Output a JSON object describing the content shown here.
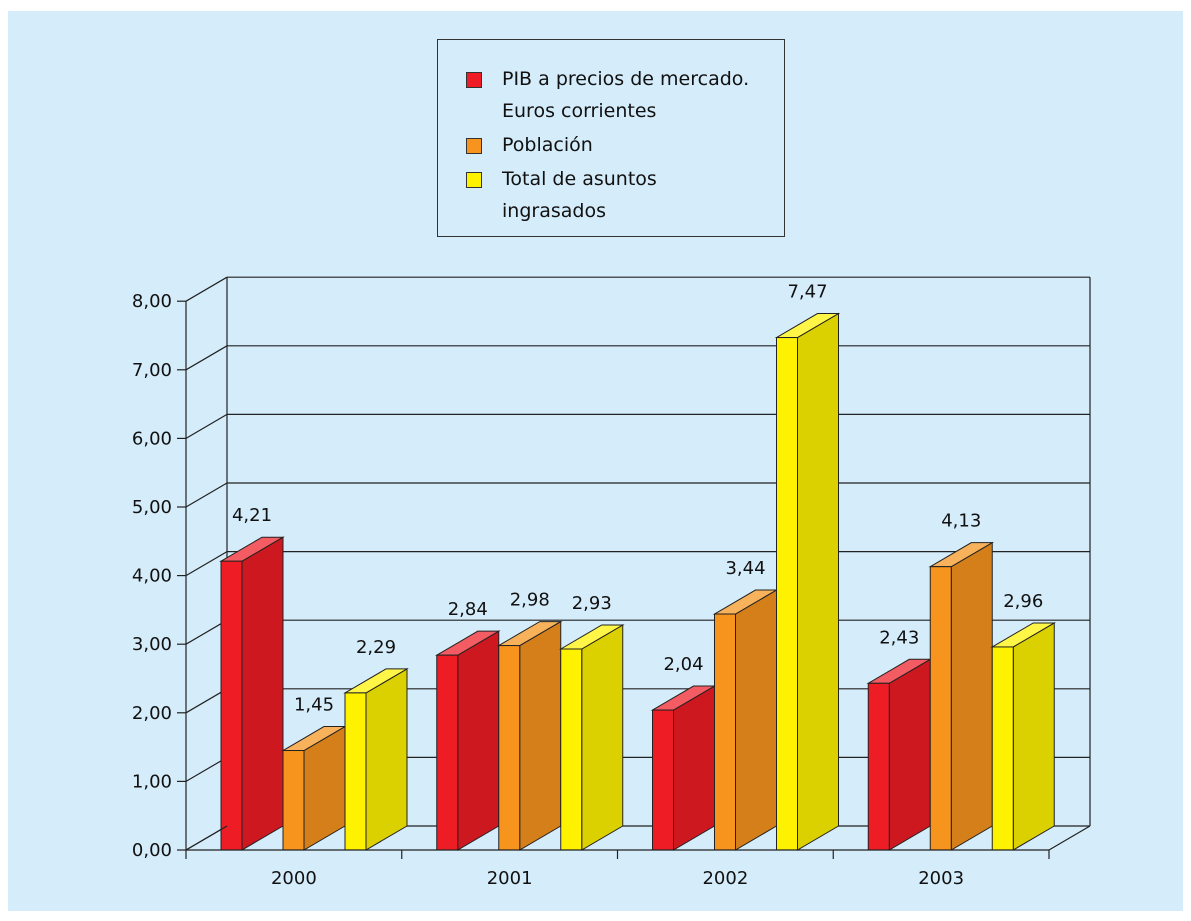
{
  "colors": {
    "background": "#d5ecfa",
    "pib": "#ee1c25",
    "poblacion": "#f7941d",
    "asuntos": "#fff200"
  },
  "legend": [
    {
      "label": "PIB a precios de mercado. Euros corrientes",
      "color": "#ee1c25"
    },
    {
      "label": "Población",
      "color": "#f7941d"
    },
    {
      "label": "Total de asuntos ingrasados",
      "color": "#fff200"
    }
  ],
  "chart_data": {
    "type": "bar",
    "categories": [
      "2000",
      "2001",
      "2002",
      "2003"
    ],
    "series": [
      {
        "name": "PIB a precios de mercado. Euros corrientes",
        "values": [
          4.21,
          2.84,
          2.04,
          2.43
        ],
        "labels": [
          "4,21",
          "2,84",
          "2,04",
          "2,43"
        ],
        "color": "#ee1c25"
      },
      {
        "name": "Población",
        "values": [
          1.45,
          2.98,
          3.44,
          4.13
        ],
        "labels": [
          "1,45",
          "2,98",
          "3,44",
          "4,13"
        ],
        "color": "#f7941d"
      },
      {
        "name": "Total de asuntos ingrasados",
        "values": [
          2.29,
          2.93,
          7.47,
          2.96
        ],
        "labels": [
          "2,29",
          "2,93",
          "7,47",
          "2,96"
        ],
        "color": "#fff200"
      }
    ],
    "yticks": [
      "0,00",
      "1,00",
      "2,00",
      "3,00",
      "4,00",
      "5,00",
      "6,00",
      "7,00",
      "8,00"
    ],
    "ylim": [
      0,
      8
    ],
    "grid": true,
    "legend_position": "top-center",
    "style": "3d"
  }
}
